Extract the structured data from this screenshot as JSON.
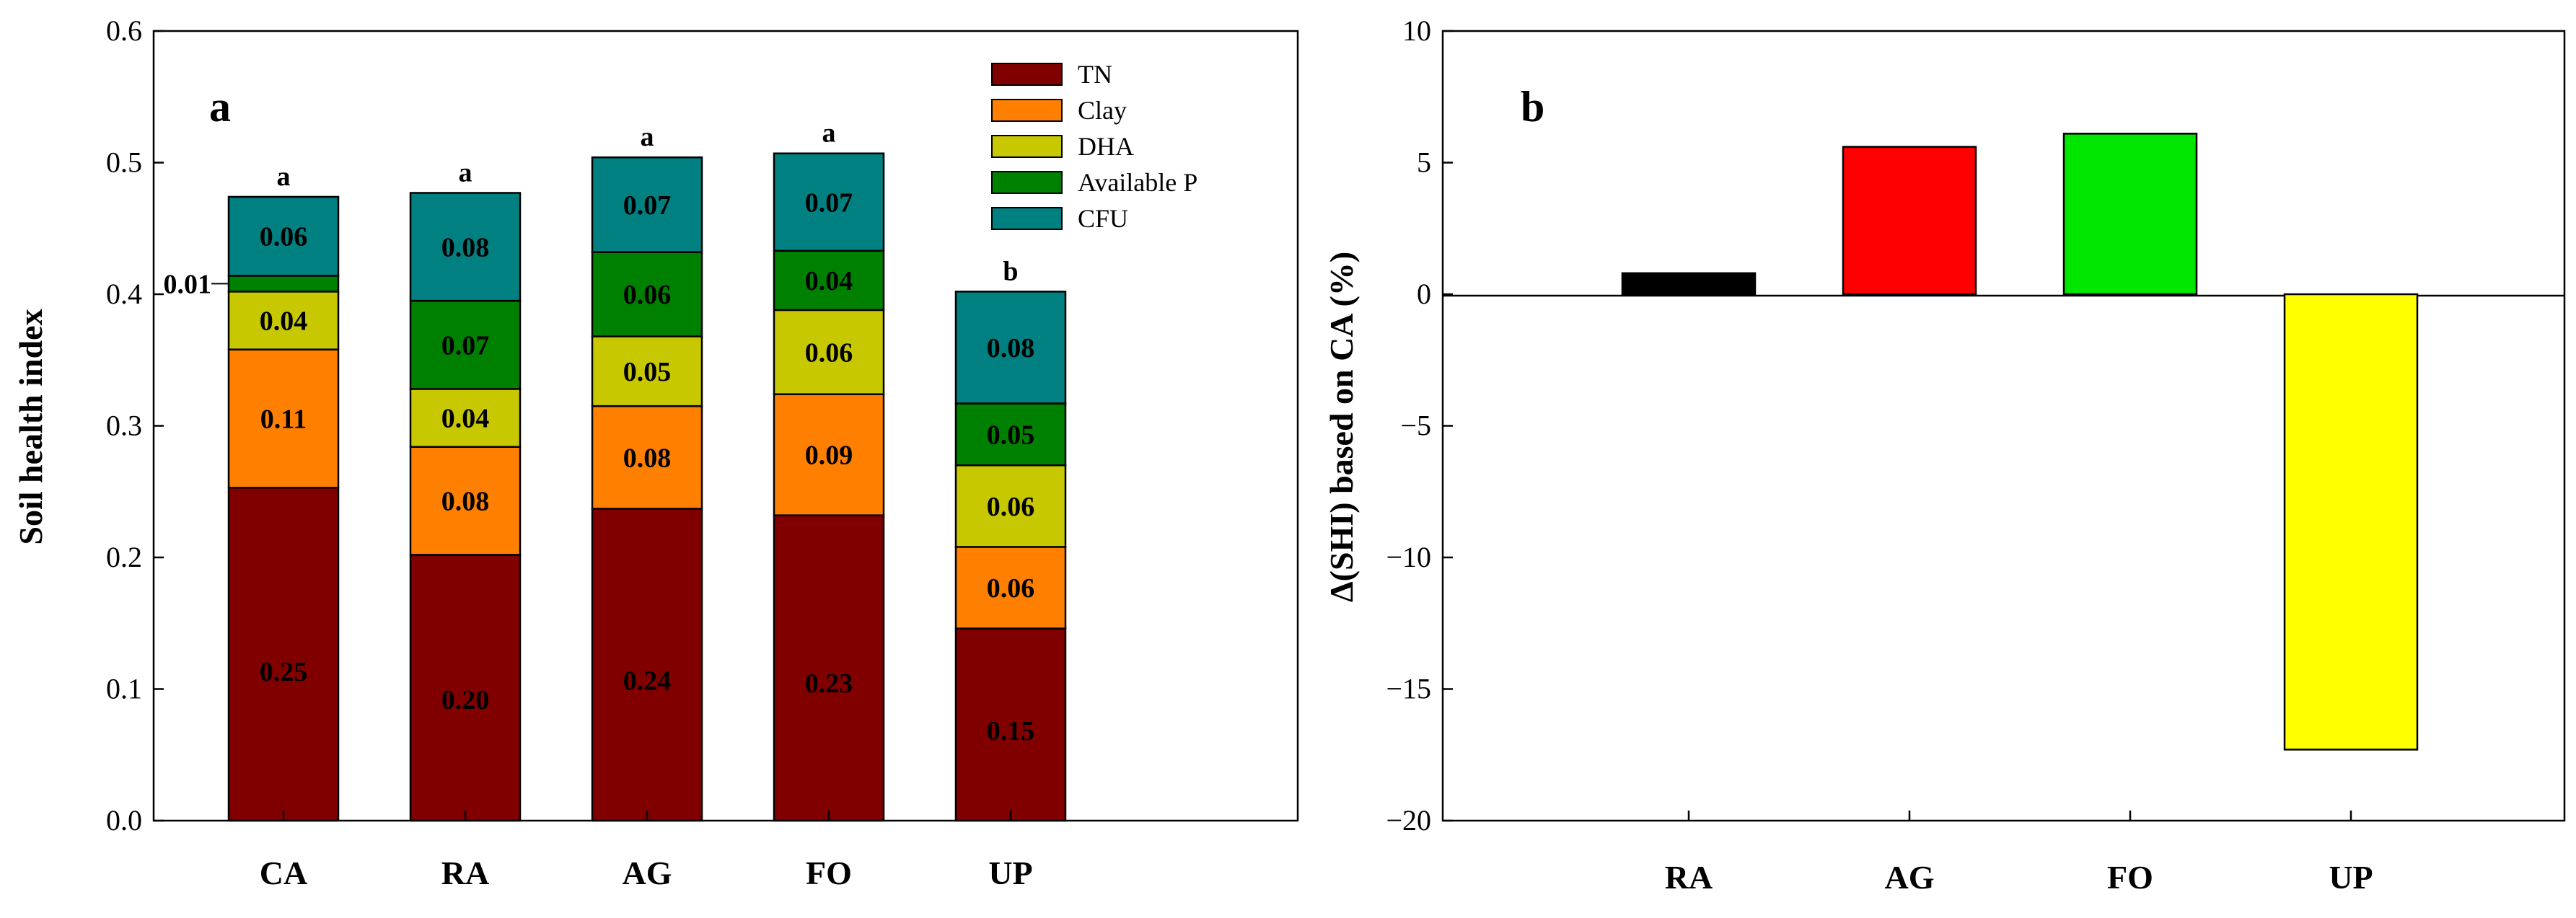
{
  "chart_data": [
    {
      "panel": "a",
      "type": "bar",
      "stacked": true,
      "ylabel": "Soil health index",
      "xlabel": "",
      "ylim": [
        0,
        0.6
      ],
      "yticks": [
        "0.0",
        "0.1",
        "0.2",
        "0.3",
        "0.4",
        "0.5",
        "0.6"
      ],
      "categories": [
        "CA",
        "RA",
        "AG",
        "FO",
        "UP"
      ],
      "series": [
        {
          "name": "TN",
          "color": "#800000",
          "values": [
            0.253,
            0.202,
            0.237,
            0.232,
            0.146
          ],
          "labels": [
            "0.25",
            "0.20",
            "0.24",
            "0.23",
            "0.15"
          ]
        },
        {
          "name": "Clay",
          "color": "#FF8000",
          "values": [
            0.105,
            0.082,
            0.078,
            0.092,
            0.062
          ],
          "labels": [
            "0.11",
            "0.08",
            "0.08",
            "0.09",
            "0.06"
          ]
        },
        {
          "name": "DHA",
          "color": "#C8C800",
          "values": [
            0.044,
            0.044,
            0.053,
            0.064,
            0.062
          ],
          "labels": [
            "0.04",
            "0.04",
            "0.05",
            "0.06",
            "0.06"
          ]
        },
        {
          "name": "Available P",
          "color": "#008000",
          "values": [
            0.012,
            0.067,
            0.064,
            0.045,
            0.047
          ],
          "labels": [
            "0.01",
            "0.07",
            "0.06",
            "0.04",
            "0.05"
          ]
        },
        {
          "name": "CFU",
          "color": "#008080",
          "values": [
            0.06,
            0.082,
            0.072,
            0.074,
            0.085
          ],
          "labels": [
            "0.06",
            "0.08",
            "0.07",
            "0.07",
            "0.08"
          ]
        }
      ],
      "significance": [
        "a",
        "a",
        "a",
        "a",
        "b"
      ],
      "legend_position": "top-right"
    },
    {
      "panel": "b",
      "type": "bar",
      "ylabel": "Δ(SHI) based on CA (%)",
      "xlabel": "",
      "ylim": [
        -20,
        10
      ],
      "yticks": [
        "−20",
        "−15",
        "−10",
        "−5",
        "0",
        "5",
        "10"
      ],
      "categories": [
        "RA",
        "AG",
        "FO",
        "UP"
      ],
      "values": [
        0.8,
        5.6,
        6.1,
        -17.3
      ],
      "colors": [
        "#000000",
        "#FF0000",
        "#00E600",
        "#FFFF00"
      ]
    }
  ]
}
